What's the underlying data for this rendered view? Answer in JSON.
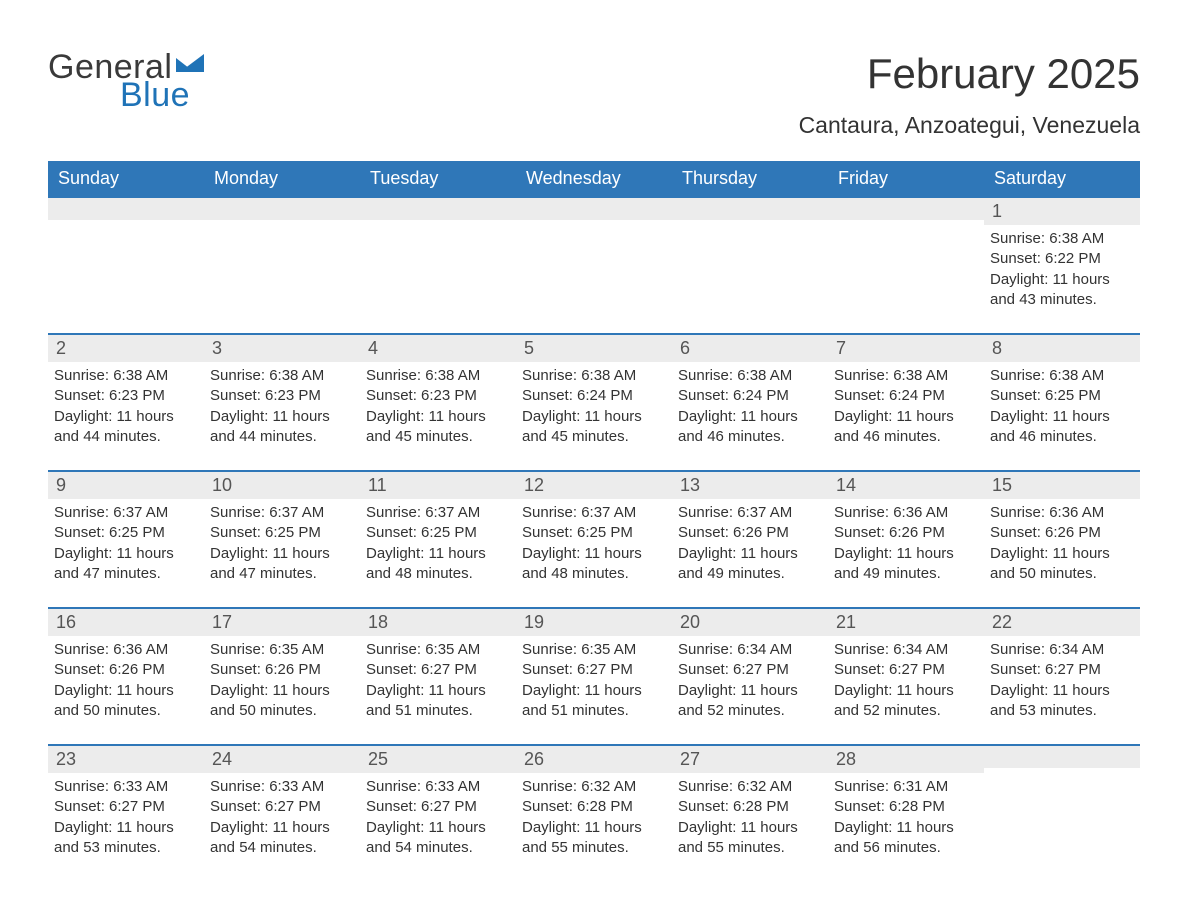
{
  "logo": {
    "text1": "General",
    "text2": "Blue",
    "text1_color": "#3a3a3a",
    "text2_color": "#1f73b7",
    "flag_color": "#1f73b7"
  },
  "header": {
    "month_title": "February 2025",
    "location": "Cantaura, Anzoategui, Venezuela"
  },
  "style": {
    "header_bg": "#2f77b8",
    "header_fg": "#ffffff",
    "week_divider": "#2f77b8",
    "daynum_bg": "#ececec",
    "daynum_fg": "#555555",
    "body_fg": "#333333",
    "page_bg": "#ffffff",
    "title_fontsize": 42,
    "location_fontsize": 23,
    "dow_fontsize": 18,
    "daynum_fontsize": 18,
    "body_fontsize": 15
  },
  "days_of_week": [
    "Sunday",
    "Monday",
    "Tuesday",
    "Wednesday",
    "Thursday",
    "Friday",
    "Saturday"
  ],
  "labels": {
    "sunrise": "Sunrise: ",
    "sunset": "Sunset: ",
    "daylight": "Daylight: "
  },
  "weeks": [
    [
      {
        "n": "",
        "sr": "",
        "ss": "",
        "dl": ""
      },
      {
        "n": "",
        "sr": "",
        "ss": "",
        "dl": ""
      },
      {
        "n": "",
        "sr": "",
        "ss": "",
        "dl": ""
      },
      {
        "n": "",
        "sr": "",
        "ss": "",
        "dl": ""
      },
      {
        "n": "",
        "sr": "",
        "ss": "",
        "dl": ""
      },
      {
        "n": "",
        "sr": "",
        "ss": "",
        "dl": ""
      },
      {
        "n": "1",
        "sr": "6:38 AM",
        "ss": "6:22 PM",
        "dl": "11 hours and 43 minutes."
      }
    ],
    [
      {
        "n": "2",
        "sr": "6:38 AM",
        "ss": "6:23 PM",
        "dl": "11 hours and 44 minutes."
      },
      {
        "n": "3",
        "sr": "6:38 AM",
        "ss": "6:23 PM",
        "dl": "11 hours and 44 minutes."
      },
      {
        "n": "4",
        "sr": "6:38 AM",
        "ss": "6:23 PM",
        "dl": "11 hours and 45 minutes."
      },
      {
        "n": "5",
        "sr": "6:38 AM",
        "ss": "6:24 PM",
        "dl": "11 hours and 45 minutes."
      },
      {
        "n": "6",
        "sr": "6:38 AM",
        "ss": "6:24 PM",
        "dl": "11 hours and 46 minutes."
      },
      {
        "n": "7",
        "sr": "6:38 AM",
        "ss": "6:24 PM",
        "dl": "11 hours and 46 minutes."
      },
      {
        "n": "8",
        "sr": "6:38 AM",
        "ss": "6:25 PM",
        "dl": "11 hours and 46 minutes."
      }
    ],
    [
      {
        "n": "9",
        "sr": "6:37 AM",
        "ss": "6:25 PM",
        "dl": "11 hours and 47 minutes."
      },
      {
        "n": "10",
        "sr": "6:37 AM",
        "ss": "6:25 PM",
        "dl": "11 hours and 47 minutes."
      },
      {
        "n": "11",
        "sr": "6:37 AM",
        "ss": "6:25 PM",
        "dl": "11 hours and 48 minutes."
      },
      {
        "n": "12",
        "sr": "6:37 AM",
        "ss": "6:25 PM",
        "dl": "11 hours and 48 minutes."
      },
      {
        "n": "13",
        "sr": "6:37 AM",
        "ss": "6:26 PM",
        "dl": "11 hours and 49 minutes."
      },
      {
        "n": "14",
        "sr": "6:36 AM",
        "ss": "6:26 PM",
        "dl": "11 hours and 49 minutes."
      },
      {
        "n": "15",
        "sr": "6:36 AM",
        "ss": "6:26 PM",
        "dl": "11 hours and 50 minutes."
      }
    ],
    [
      {
        "n": "16",
        "sr": "6:36 AM",
        "ss": "6:26 PM",
        "dl": "11 hours and 50 minutes."
      },
      {
        "n": "17",
        "sr": "6:35 AM",
        "ss": "6:26 PM",
        "dl": "11 hours and 50 minutes."
      },
      {
        "n": "18",
        "sr": "6:35 AM",
        "ss": "6:27 PM",
        "dl": "11 hours and 51 minutes."
      },
      {
        "n": "19",
        "sr": "6:35 AM",
        "ss": "6:27 PM",
        "dl": "11 hours and 51 minutes."
      },
      {
        "n": "20",
        "sr": "6:34 AM",
        "ss": "6:27 PM",
        "dl": "11 hours and 52 minutes."
      },
      {
        "n": "21",
        "sr": "6:34 AM",
        "ss": "6:27 PM",
        "dl": "11 hours and 52 minutes."
      },
      {
        "n": "22",
        "sr": "6:34 AM",
        "ss": "6:27 PM",
        "dl": "11 hours and 53 minutes."
      }
    ],
    [
      {
        "n": "23",
        "sr": "6:33 AM",
        "ss": "6:27 PM",
        "dl": "11 hours and 53 minutes."
      },
      {
        "n": "24",
        "sr": "6:33 AM",
        "ss": "6:27 PM",
        "dl": "11 hours and 54 minutes."
      },
      {
        "n": "25",
        "sr": "6:33 AM",
        "ss": "6:27 PM",
        "dl": "11 hours and 54 minutes."
      },
      {
        "n": "26",
        "sr": "6:32 AM",
        "ss": "6:28 PM",
        "dl": "11 hours and 55 minutes."
      },
      {
        "n": "27",
        "sr": "6:32 AM",
        "ss": "6:28 PM",
        "dl": "11 hours and 55 minutes."
      },
      {
        "n": "28",
        "sr": "6:31 AM",
        "ss": "6:28 PM",
        "dl": "11 hours and 56 minutes."
      },
      {
        "n": "",
        "sr": "",
        "ss": "",
        "dl": ""
      }
    ]
  ]
}
